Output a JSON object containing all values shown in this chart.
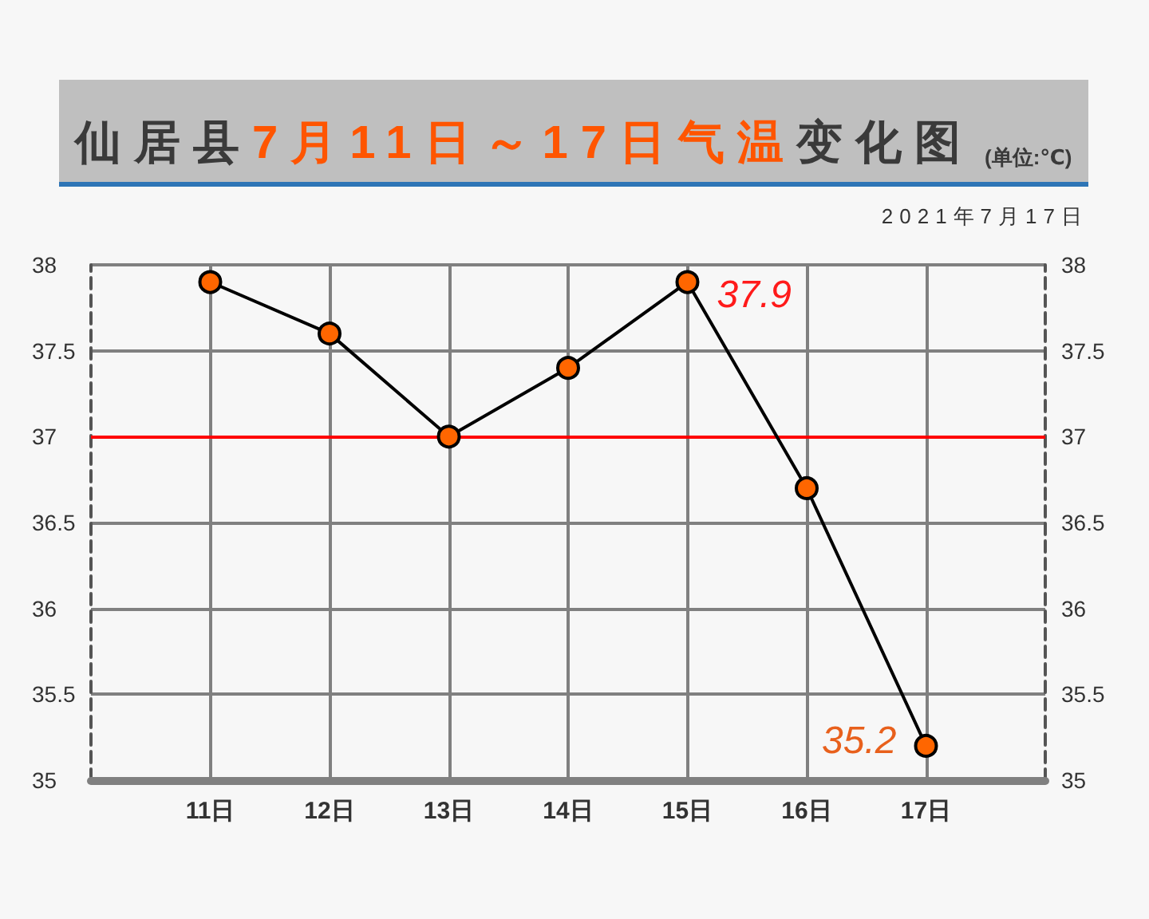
{
  "chart_data": {
    "type": "line",
    "title": "仙居县7月11日～17日气温变化图",
    "subtitle": "(单位:℃)",
    "annotations": [
      "2021年7月17日"
    ],
    "categories": [
      null,
      "11日",
      "12日",
      "13日",
      "14日",
      "15日",
      "16日",
      "17日",
      null
    ],
    "series": [
      {
        "color": "#ff6600",
        "values": [
          null,
          37.9,
          37.6,
          37.0,
          37.4,
          37.9,
          36.7,
          35.2,
          null
        ],
        "value_labels": [
          null,
          null,
          null,
          null,
          null,
          "37.9",
          null,
          "35.2",
          null
        ]
      }
    ],
    "ylim": [
      35,
      38
    ],
    "yticks": [
      35,
      35.5,
      36,
      36.5,
      37,
      37.5,
      38
    ],
    "y2lim": [
      35,
      38
    ],
    "y2ticks": [
      35,
      35.5,
      36,
      36.5,
      37,
      37.5,
      38
    ],
    "ref_lines": [
      {
        "axis": "y",
        "value": 37,
        "color": "#ff0000"
      }
    ],
    "grid": true,
    "marker": "circle",
    "line_style": "solid"
  }
}
